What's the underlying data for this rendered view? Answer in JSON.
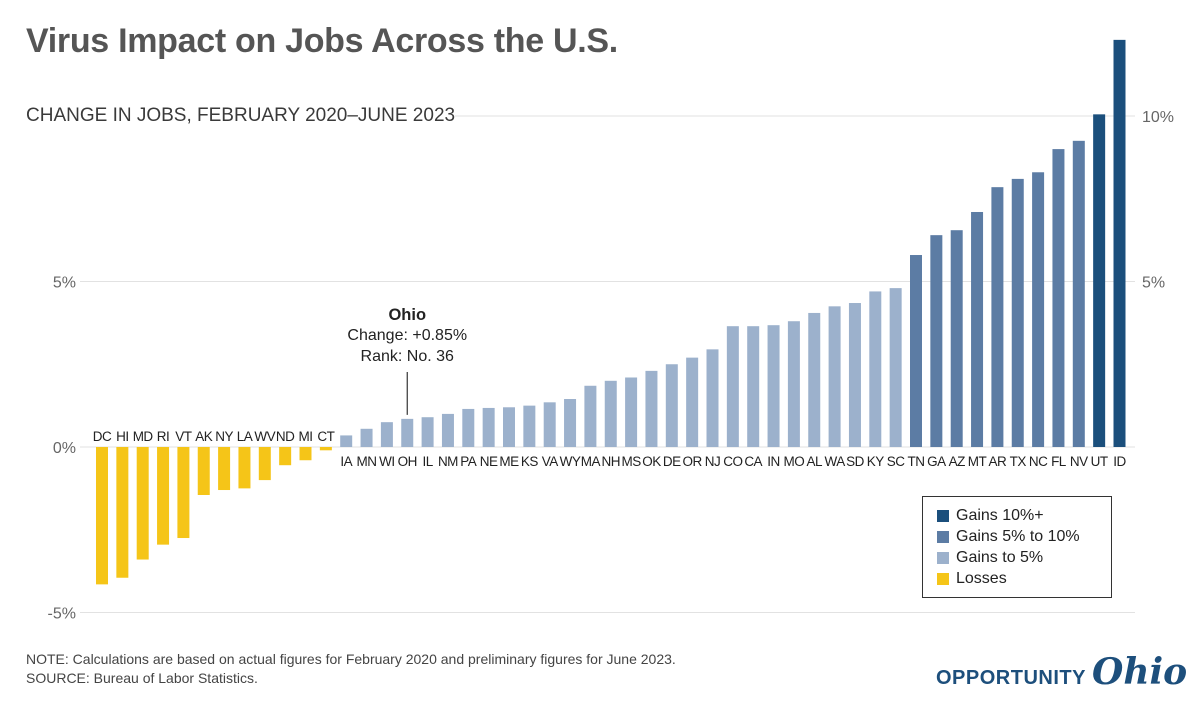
{
  "title": "Virus Impact on Jobs Across the U.S.",
  "subtitle": "CHANGE IN JOBS, FEBRUARY 2020–JUNE 2023",
  "colors": {
    "gains_10_plus": "#1b4f7c",
    "gains_5_to_10": "#5c7ca4",
    "gains_to_5": "#9cb1cc",
    "losses": "#f5c518",
    "grid": "#e2e2e2"
  },
  "legend": {
    "items": [
      {
        "label": "Gains 10%+",
        "color": "#1b4f7c"
      },
      {
        "label": "Gains 5% to 10%",
        "color": "#5c7ca4"
      },
      {
        "label": "Gains to 5%",
        "color": "#9cb1cc"
      },
      {
        "label": "Losses",
        "color": "#f5c518"
      }
    ]
  },
  "annotation": {
    "state": "OH",
    "title": "Ohio",
    "line1": "Change: +0.85%",
    "line2": "Rank: No. 36"
  },
  "note": "NOTE: Calculations are based on actual figures for February 2020 and preliminary figures for June 2023.",
  "source": "SOURCE: Bureau of Labor Statistics.",
  "logo": {
    "main": "OPPORTUNITY",
    "script": "Ohio"
  },
  "chart_data": {
    "type": "bar",
    "title": "Virus Impact on Jobs Across the U.S.",
    "subtitle": "CHANGE IN JOBS, FEBRUARY 2020–JUNE 2023",
    "ylim": [
      -5,
      12.3
    ],
    "left_ticks": [
      "5%",
      "0%",
      "-5%"
    ],
    "left_tick_values": [
      5,
      0,
      -5
    ],
    "right_ticks": [
      "10%",
      "5%"
    ],
    "right_tick_values": [
      10,
      5
    ],
    "grid": true,
    "legend_position": "bottom-right",
    "categories": [
      "DC",
      "HI",
      "MD",
      "RI",
      "VT",
      "AK",
      "NY",
      "LA",
      "WV",
      "ND",
      "MI",
      "CT",
      "IA",
      "MN",
      "WI",
      "OH",
      "IL",
      "NM",
      "PA",
      "NE",
      "ME",
      "KS",
      "VA",
      "WY",
      "MA",
      "NH",
      "MS",
      "OK",
      "DE",
      "OR",
      "NJ",
      "CO",
      "CA",
      "IN",
      "MO",
      "AL",
      "WA",
      "SD",
      "KY",
      "SC",
      "TN",
      "GA",
      "AZ",
      "MT",
      "AR",
      "TX",
      "NC",
      "FL",
      "NV",
      "UT",
      "ID"
    ],
    "values": [
      -4.15,
      -3.95,
      -3.4,
      -2.95,
      -2.75,
      -1.45,
      -1.3,
      -1.25,
      -1.0,
      -0.55,
      -0.4,
      -0.1,
      0.35,
      0.55,
      0.75,
      0.85,
      0.9,
      1.0,
      1.15,
      1.18,
      1.2,
      1.25,
      1.35,
      1.45,
      1.85,
      2.0,
      2.1,
      2.3,
      2.5,
      2.7,
      2.95,
      3.65,
      3.65,
      3.68,
      3.8,
      4.05,
      4.25,
      4.35,
      4.7,
      4.8,
      5.8,
      6.4,
      6.55,
      7.1,
      7.85,
      8.1,
      8.3,
      9.0,
      9.25,
      10.05,
      12.3
    ],
    "groups": [
      "losses",
      "losses",
      "losses",
      "losses",
      "losses",
      "losses",
      "losses",
      "losses",
      "losses",
      "losses",
      "losses",
      "losses",
      "gains_to_5",
      "gains_to_5",
      "gains_to_5",
      "gains_to_5",
      "gains_to_5",
      "gains_to_5",
      "gains_to_5",
      "gains_to_5",
      "gains_to_5",
      "gains_to_5",
      "gains_to_5",
      "gains_to_5",
      "gains_to_5",
      "gains_to_5",
      "gains_to_5",
      "gains_to_5",
      "gains_to_5",
      "gains_to_5",
      "gains_to_5",
      "gains_to_5",
      "gains_to_5",
      "gains_to_5",
      "gains_to_5",
      "gains_to_5",
      "gains_to_5",
      "gains_to_5",
      "gains_to_5",
      "gains_to_5",
      "gains_5_to_10",
      "gains_5_to_10",
      "gains_5_to_10",
      "gains_5_to_10",
      "gains_5_to_10",
      "gains_5_to_10",
      "gains_5_to_10",
      "gains_5_to_10",
      "gains_5_to_10",
      "gains_10_plus",
      "gains_10_plus"
    ]
  }
}
